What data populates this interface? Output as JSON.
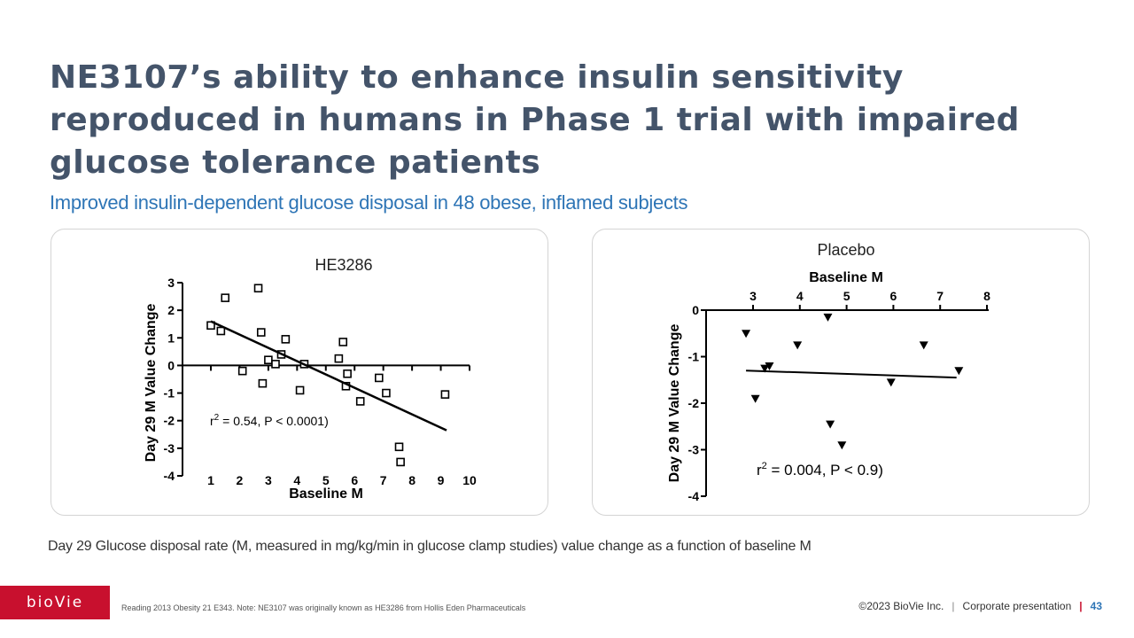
{
  "slide": {
    "title": "NE3107’s ability to enhance insulin sensitivity reproduced in humans in Phase 1 trial with impaired glucose tolerance patients",
    "subtitle": "Improved insulin-dependent glucose disposal in 48 obese, inflamed subjects",
    "caption": "Day 29 Glucose disposal rate (M, measured in mg/kg/min in glucose clamp studies) value change as a function of baseline M",
    "logo_text": "bioVie",
    "footnote": "Reading 2013 Obesity 21 E343. Note: NE3107 was originally known as HE3286 from Hollis Eden Pharmaceuticals",
    "copyright": "©2023 BioVie Inc.",
    "divider": "|",
    "presentation": "Corporate presentation",
    "page": "43",
    "accent_color": "#2e75b6",
    "title_color": "#44546a",
    "brand_color": "#c8102e"
  },
  "chart_data": [
    {
      "type": "scatter",
      "title": "HE3286",
      "xlabel": "Baseline M",
      "ylabel": "Day 29 M Value Change",
      "xlim": [
        1,
        10
      ],
      "ylim": [
        -4,
        3
      ],
      "x_ticks": [
        1,
        2,
        3,
        4,
        5,
        6,
        7,
        8,
        9,
        10
      ],
      "y_ticks": [
        3,
        2,
        1,
        0,
        -1,
        -2,
        -3,
        -4
      ],
      "marker": "open-square",
      "points": [
        {
          "x": 1.0,
          "y": 1.45
        },
        {
          "x": 1.35,
          "y": 1.25
        },
        {
          "x": 1.5,
          "y": 2.45
        },
        {
          "x": 2.1,
          "y": -0.2
        },
        {
          "x": 2.65,
          "y": 2.8
        },
        {
          "x": 2.75,
          "y": 1.2
        },
        {
          "x": 2.8,
          "y": -0.65
        },
        {
          "x": 3.0,
          "y": 0.2
        },
        {
          "x": 3.25,
          "y": 0.05
        },
        {
          "x": 3.45,
          "y": 0.4
        },
        {
          "x": 3.6,
          "y": 0.95
        },
        {
          "x": 4.1,
          "y": -0.9
        },
        {
          "x": 4.25,
          "y": 0.05
        },
        {
          "x": 5.45,
          "y": 0.25
        },
        {
          "x": 5.6,
          "y": 0.85
        },
        {
          "x": 5.75,
          "y": -0.3
        },
        {
          "x": 5.7,
          "y": -0.75
        },
        {
          "x": 6.2,
          "y": -1.3
        },
        {
          "x": 6.85,
          "y": -0.45
        },
        {
          "x": 7.1,
          "y": -1.0
        },
        {
          "x": 7.55,
          "y": -2.95
        },
        {
          "x": 7.6,
          "y": -3.5
        },
        {
          "x": 9.15,
          "y": -1.05
        }
      ],
      "fit_line": [
        {
          "x": 1.0,
          "y": 1.6
        },
        {
          "x": 9.2,
          "y": -2.35
        }
      ],
      "annotation": {
        "prefix": "r",
        "sup": "2",
        "text": " = 0.54, P < 0.0001)"
      }
    },
    {
      "type": "scatter",
      "title": "Placebo",
      "xlabel": "Baseline M",
      "ylabel": "Day 29 M Value Change",
      "xlim": [
        2.5,
        8
      ],
      "ylim": [
        -4,
        0
      ],
      "x_ticks": [
        3,
        4,
        5,
        6,
        7,
        8
      ],
      "y_ticks": [
        0,
        -1,
        -2,
        -3,
        -4
      ],
      "marker": "filled-triangle-down",
      "points": [
        {
          "x": 2.85,
          "y": -0.5
        },
        {
          "x": 3.05,
          "y": -1.9
        },
        {
          "x": 3.25,
          "y": -1.25
        },
        {
          "x": 3.35,
          "y": -1.2
        },
        {
          "x": 3.95,
          "y": -0.75
        },
        {
          "x": 4.6,
          "y": -0.15
        },
        {
          "x": 4.65,
          "y": -2.45
        },
        {
          "x": 4.9,
          "y": -2.9
        },
        {
          "x": 5.95,
          "y": -1.55
        },
        {
          "x": 6.65,
          "y": -0.75
        },
        {
          "x": 7.4,
          "y": -1.3
        }
      ],
      "fit_line": [
        {
          "x": 2.85,
          "y": -1.3
        },
        {
          "x": 7.35,
          "y": -1.45
        }
      ],
      "annotation": {
        "prefix": "r",
        "sup": "2",
        "text": " = 0.004, P < 0.9)"
      }
    }
  ]
}
